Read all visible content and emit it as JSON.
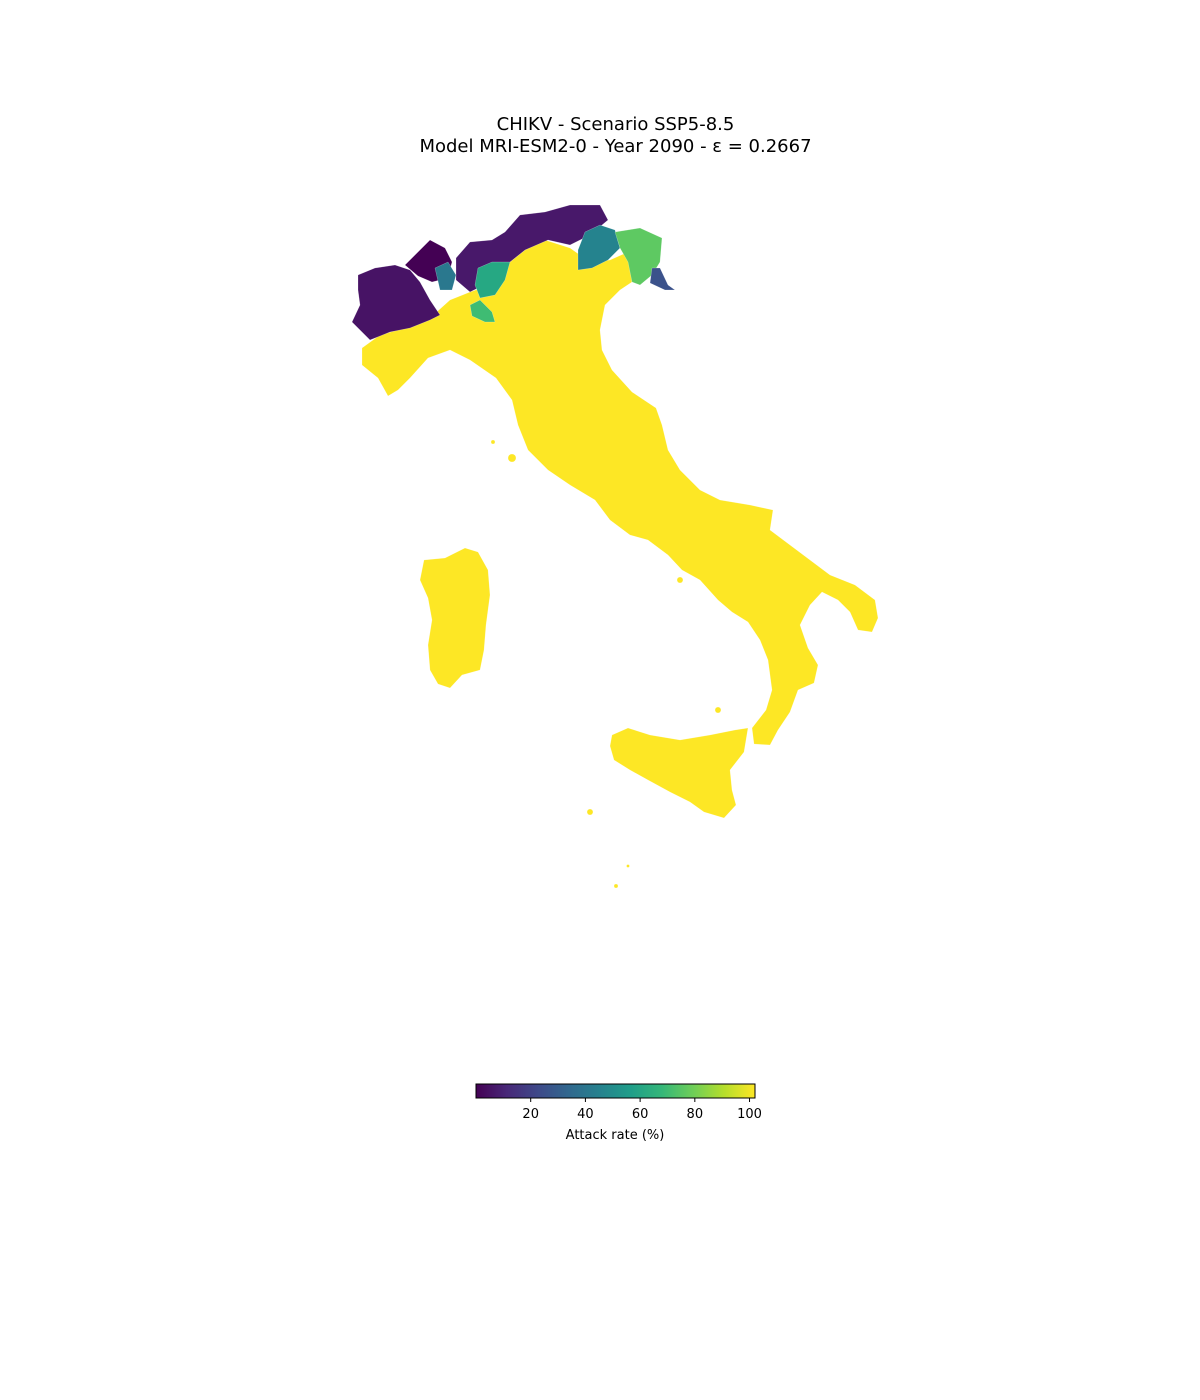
{
  "title": {
    "line1": "CHIKV - Scenario SSP5-8.5",
    "line2": "Model MRI-ESM2-0 - Year 2090 - ε = 0.2667"
  },
  "colorbar": {
    "label": "Attack rate (%)",
    "colormap": "viridis",
    "min": 0,
    "max": 102,
    "ticks": [
      "20",
      "40",
      "60",
      "80",
      "100"
    ],
    "stops": [
      "#440154",
      "#482878",
      "#3e4989",
      "#31688e",
      "#26828e",
      "#1f9e89",
      "#35b779",
      "#6ece58",
      "#b5de2b",
      "#fde725"
    ]
  },
  "regions": {
    "high": {
      "name": "most of Italy",
      "attack_rate": 100,
      "color": "#fde725"
    },
    "aosta_piedmont_north": {
      "attack_rate": 2,
      "color": "#440154"
    },
    "piedmont_west": {
      "attack_rate": 8,
      "color": "#471365"
    },
    "lombardy_alpine": {
      "attack_rate": 12,
      "color": "#48186a"
    },
    "sondrio_valley": {
      "attack_rate": 38,
      "color": "#2a788e"
    },
    "trentino_south": {
      "attack_rate": 55,
      "color": "#26a883"
    },
    "bolzano_east": {
      "attack_rate": 48,
      "color": "#25838e"
    },
    "friuli_north": {
      "attack_rate": 78,
      "color": "#5ec962"
    },
    "trieste": {
      "attack_rate": 22,
      "color": "#3b528b"
    },
    "small_lombard": {
      "attack_rate": 70,
      "color": "#3fbc73"
    }
  }
}
